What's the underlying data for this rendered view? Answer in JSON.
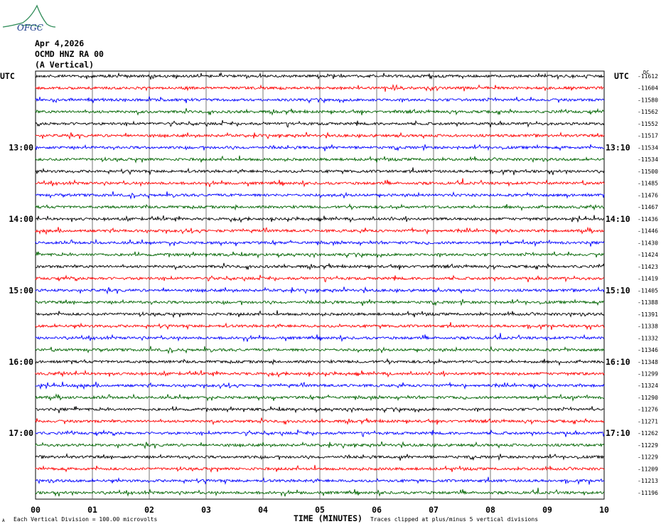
{
  "header": {
    "logo_text": "OFGC",
    "date": "Apr 4,2026",
    "station": "OCMD HNZ RA 00",
    "component": "(A Vertical)",
    "top_left_utc": "UTC",
    "top_right_utc": "UTC",
    "top_right_dc": "DC"
  },
  "footer": {
    "division_note": "Each Vertical Division =  100.00 microvolts",
    "axis_title": "TIME (MINUTES)",
    "clip_note": "Traces clipped at plus/minus 5 vertical divisions",
    "corner_mark": "A"
  },
  "chart_data": {
    "type": "line",
    "title": "OCMD HNZ RA 00",
    "xlabel": "TIME (MINUTES)",
    "xlim": [
      0,
      10
    ],
    "x_ticks": [
      "00",
      "01",
      "02",
      "03",
      "04",
      "05",
      "06",
      "07",
      "08",
      "09",
      "10"
    ],
    "left_time_labels": [
      {
        "row": 6,
        "text": "13:00"
      },
      {
        "row": 12,
        "text": "14:00"
      },
      {
        "row": 18,
        "text": "15:00"
      },
      {
        "row": 24,
        "text": "16:00"
      },
      {
        "row": 30,
        "text": "17:00"
      }
    ],
    "right_time_labels": [
      {
        "row": 6,
        "text": "13:10"
      },
      {
        "row": 12,
        "text": "14:10"
      },
      {
        "row": 18,
        "text": "15:10"
      },
      {
        "row": 24,
        "text": "16:10"
      },
      {
        "row": 30,
        "text": "17:10"
      }
    ],
    "trace_colors": [
      "#000000",
      "#ff0000",
      "#0000ff",
      "#006400"
    ],
    "dc_offsets": [
      "-11612",
      "-11604",
      "-11580",
      "-11562",
      "-11552",
      "-11517",
      "-11534",
      "-11534",
      "-11500",
      "-11485",
      "-11476",
      "-11467",
      "-11436",
      "-11446",
      "-11430",
      "-11424",
      "-11423",
      "-11419",
      "-11405",
      "-11388",
      "-11391",
      "-11338",
      "-11332",
      "-11346",
      "-11348",
      "-11299",
      "-11324",
      "-11290",
      "-11276",
      "-11271",
      "-11262",
      "-11229",
      "-11229",
      "-11209",
      "-11213",
      "-11196"
    ],
    "grid": true
  }
}
